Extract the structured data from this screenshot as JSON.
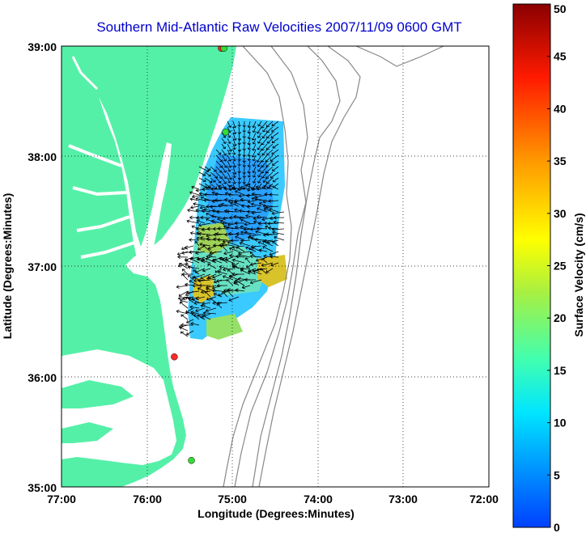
{
  "title": "Southern Mid-Atlantic Raw Velocities 2007/11/09 0600 GMT",
  "x_axis": {
    "label": "Longitude (Degrees:Minutes)",
    "ticks": [
      "77:00",
      "76:00",
      "75:00",
      "74:00",
      "73:00",
      "72:00"
    ]
  },
  "y_axis": {
    "label": "Latitude (Degrees:Minutes)",
    "ticks": [
      "39:00",
      "38:00",
      "37:00",
      "36:00",
      "35:00"
    ]
  },
  "colorbar": {
    "label": "Surface Velocity (cm/s)",
    "ticks": [
      "0",
      "5",
      "10",
      "15",
      "20",
      "25",
      "30",
      "35",
      "40",
      "45",
      "50"
    ],
    "min": 0,
    "max": 50,
    "colormap": "jet"
  },
  "colors": {
    "land": "#55f0a8",
    "water": "#ffffff",
    "title": "#0000cc",
    "vectors": "#000000",
    "bathymetry": "#888888",
    "station_red": "#ff2a2a",
    "station_green": "#33dd33"
  },
  "stations": [
    {
      "lon": -75.13,
      "lat": 38.98,
      "color": "red"
    },
    {
      "lon": -75.1,
      "lat": 38.98,
      "color": "green"
    },
    {
      "lon": -75.08,
      "lat": 38.22,
      "color": "green"
    },
    {
      "lon": -75.68,
      "lat": 36.18,
      "color": "red"
    },
    {
      "lon": -75.48,
      "lat": 35.24,
      "color": "green"
    }
  ],
  "grid": "dotted at degree lines"
}
